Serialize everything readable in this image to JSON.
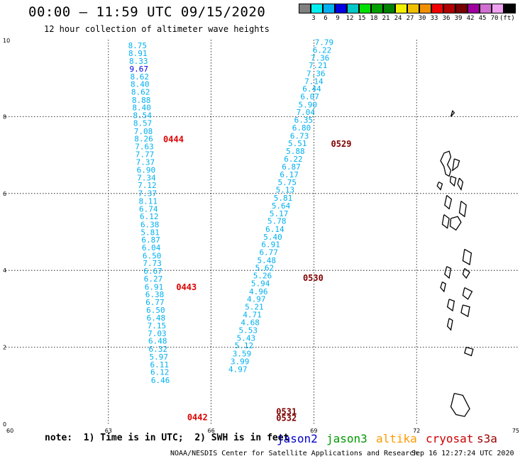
{
  "header": {
    "title": "00:00 – 11:59 UTC 09/15/2020",
    "subtitle": "12 hour collection of altimeter wave heights"
  },
  "legend": {
    "colors": [
      "#808080",
      "#00f0f0",
      "#00b0f0",
      "#0000e0",
      "#00c8c8",
      "#00e000",
      "#00a000",
      "#008000",
      "#f0f000",
      "#f0c000",
      "#f09000",
      "#f00000",
      "#b00000",
      "#780000",
      "#a000a0",
      "#d070d0",
      "#f0a0f0",
      "#000000"
    ],
    "labels": [
      "3",
      "6",
      "9",
      "12",
      "15",
      "18",
      "21",
      "24",
      "27",
      "30",
      "33",
      "36",
      "39",
      "42",
      "45",
      "70"
    ],
    "unit": "(ft)"
  },
  "note": {
    "text": "note:  1) Time is in UTC;  2) SWH is in feet",
    "satellites": [
      {
        "name": "jason2",
        "color": "#0000cc"
      },
      {
        "name": "jason3",
        "color": "#009900"
      },
      {
        "name": "altika",
        "color": "#ff9900"
      },
      {
        "name": "cryosat",
        "color": "#cc0000"
      },
      {
        "name": "s3a",
        "color": "#990000"
      }
    ]
  },
  "footer": {
    "left": "NOAA/NESDIS Center for Satellite Applications and Research",
    "right": "Sep 16 12:27:24 UTC 2020"
  },
  "chart_data": {
    "type": "scatter",
    "title": "00:00 – 11:59 UTC 09/15/2020",
    "xlabel": "",
    "ylabel": "",
    "xlim": [
      60,
      75
    ],
    "ylim": [
      0,
      10
    ],
    "x_ticks": [
      60,
      63,
      66,
      69,
      72,
      75
    ],
    "y_ticks": [
      0,
      2,
      4,
      6,
      8,
      10
    ],
    "grid": true,
    "series": [
      {
        "color": "#00b0f0",
        "points": [
          {
            "x": 63.85,
            "y": 9.78,
            "v": "8.75"
          },
          {
            "x": 63.86,
            "y": 9.58,
            "v": "8.91"
          },
          {
            "x": 63.88,
            "y": 9.37,
            "v": "8.33"
          },
          {
            "x": 63.89,
            "y": 9.17,
            "v": "9.67",
            "color": "#0000e0"
          },
          {
            "x": 63.91,
            "y": 8.97,
            "v": "8.62"
          },
          {
            "x": 63.92,
            "y": 8.77,
            "v": "8.40"
          },
          {
            "x": 63.94,
            "y": 8.57,
            "v": "8.62"
          },
          {
            "x": 63.96,
            "y": 8.36,
            "v": "8.88"
          },
          {
            "x": 63.97,
            "y": 8.16,
            "v": "8.40"
          },
          {
            "x": 63.99,
            "y": 7.96,
            "v": "8.54"
          },
          {
            "x": 64.0,
            "y": 7.76,
            "v": "8.57"
          },
          {
            "x": 64.02,
            "y": 7.55,
            "v": "7.08"
          },
          {
            "x": 64.03,
            "y": 7.35,
            "v": "8.26"
          },
          {
            "x": 64.05,
            "y": 7.15,
            "v": "7.63"
          },
          {
            "x": 64.06,
            "y": 6.95,
            "v": "7.77"
          },
          {
            "x": 64.08,
            "y": 6.74,
            "v": "7.37"
          },
          {
            "x": 64.1,
            "y": 6.54,
            "v": "6.90"
          },
          {
            "x": 64.11,
            "y": 6.34,
            "v": "7.34"
          },
          {
            "x": 64.13,
            "y": 6.14,
            "v": "7.12"
          },
          {
            "x": 64.14,
            "y": 5.93,
            "v": "7.37"
          },
          {
            "x": 64.16,
            "y": 5.73,
            "v": "8.11"
          },
          {
            "x": 64.17,
            "y": 5.53,
            "v": "6.74"
          },
          {
            "x": 64.19,
            "y": 5.33,
            "v": "6.12"
          },
          {
            "x": 64.21,
            "y": 5.12,
            "v": "6.38"
          },
          {
            "x": 64.22,
            "y": 4.92,
            "v": "5.81"
          },
          {
            "x": 64.24,
            "y": 4.72,
            "v": "6.87"
          },
          {
            "x": 64.25,
            "y": 4.52,
            "v": "6.04"
          },
          {
            "x": 64.27,
            "y": 4.31,
            "v": "6.50"
          },
          {
            "x": 64.28,
            "y": 4.11,
            "v": "7.73"
          },
          {
            "x": 64.3,
            "y": 3.91,
            "v": "6.67"
          },
          {
            "x": 64.31,
            "y": 3.71,
            "v": "6.27"
          },
          {
            "x": 64.33,
            "y": 3.5,
            "v": "6.91"
          },
          {
            "x": 64.35,
            "y": 3.3,
            "v": "6.38"
          },
          {
            "x": 64.36,
            "y": 3.1,
            "v": "6.77"
          },
          {
            "x": 64.38,
            "y": 2.9,
            "v": "6.50"
          },
          {
            "x": 64.39,
            "y": 2.69,
            "v": "6.48"
          },
          {
            "x": 64.41,
            "y": 2.49,
            "v": "7.15"
          },
          {
            "x": 64.42,
            "y": 2.29,
            "v": "7.03"
          },
          {
            "x": 64.44,
            "y": 2.09,
            "v": "6.48"
          },
          {
            "x": 64.45,
            "y": 1.88,
            "v": "6.32"
          },
          {
            "x": 64.47,
            "y": 1.68,
            "v": "5.97"
          },
          {
            "x": 64.49,
            "y": 1.48,
            "v": "6.11"
          },
          {
            "x": 64.5,
            "y": 1.28,
            "v": "6.12"
          },
          {
            "x": 64.52,
            "y": 1.07,
            "v": "6.46"
          }
        ]
      },
      {
        "color": "#00b0f0",
        "points": [
          {
            "x": 69.3,
            "y": 9.86,
            "v": "7.79"
          },
          {
            "x": 69.24,
            "y": 9.66,
            "v": "6.22"
          },
          {
            "x": 69.18,
            "y": 9.46,
            "v": "7.36"
          },
          {
            "x": 69.12,
            "y": 9.26,
            "v": "7.21"
          },
          {
            "x": 69.06,
            "y": 9.05,
            "v": "7.36"
          },
          {
            "x": 69.0,
            "y": 8.85,
            "v": "7.14"
          },
          {
            "x": 68.94,
            "y": 8.65,
            "v": "6.44"
          },
          {
            "x": 68.88,
            "y": 8.45,
            "v": "6.07"
          },
          {
            "x": 68.82,
            "y": 8.24,
            "v": "5.90"
          },
          {
            "x": 68.76,
            "y": 8.04,
            "v": "7.04"
          },
          {
            "x": 68.7,
            "y": 7.84,
            "v": "6.35"
          },
          {
            "x": 68.64,
            "y": 7.64,
            "v": "6.80"
          },
          {
            "x": 68.58,
            "y": 7.43,
            "v": "6.73"
          },
          {
            "x": 68.52,
            "y": 7.23,
            "v": "5.51"
          },
          {
            "x": 68.46,
            "y": 7.03,
            "v": "5.88"
          },
          {
            "x": 68.4,
            "y": 6.83,
            "v": "6.22"
          },
          {
            "x": 68.34,
            "y": 6.62,
            "v": "6.87"
          },
          {
            "x": 68.28,
            "y": 6.42,
            "v": "6.17"
          },
          {
            "x": 68.22,
            "y": 6.22,
            "v": "5.75"
          },
          {
            "x": 68.16,
            "y": 6.02,
            "v": "5.13"
          },
          {
            "x": 68.1,
            "y": 5.81,
            "v": "5.81"
          },
          {
            "x": 68.04,
            "y": 5.61,
            "v": "5.64"
          },
          {
            "x": 67.98,
            "y": 5.41,
            "v": "5.17"
          },
          {
            "x": 67.92,
            "y": 5.21,
            "v": "5.78"
          },
          {
            "x": 67.86,
            "y": 5.0,
            "v": "6.14"
          },
          {
            "x": 67.8,
            "y": 4.8,
            "v": "5.40"
          },
          {
            "x": 67.74,
            "y": 4.6,
            "v": "6.91"
          },
          {
            "x": 67.68,
            "y": 4.4,
            "v": "6.77"
          },
          {
            "x": 67.62,
            "y": 4.19,
            "v": "5.48"
          },
          {
            "x": 67.56,
            "y": 3.99,
            "v": "5.62"
          },
          {
            "x": 67.5,
            "y": 3.79,
            "v": "5.26"
          },
          {
            "x": 67.44,
            "y": 3.59,
            "v": "5.94"
          },
          {
            "x": 67.38,
            "y": 3.38,
            "v": "4.96"
          },
          {
            "x": 67.32,
            "y": 3.18,
            "v": "4.97"
          },
          {
            "x": 67.26,
            "y": 2.98,
            "v": "5.21"
          },
          {
            "x": 67.2,
            "y": 2.78,
            "v": "4.71"
          },
          {
            "x": 67.14,
            "y": 2.57,
            "v": "4.68"
          },
          {
            "x": 67.08,
            "y": 2.37,
            "v": "5.53"
          },
          {
            "x": 67.02,
            "y": 2.17,
            "v": "5.43"
          },
          {
            "x": 66.96,
            "y": 1.97,
            "v": "5.12"
          },
          {
            "x": 66.9,
            "y": 1.76,
            "v": "3.59"
          },
          {
            "x": 66.84,
            "y": 1.56,
            "v": "3.99"
          },
          {
            "x": 66.78,
            "y": 1.36,
            "v": "4.97"
          }
        ]
      }
    ],
    "time_labels": [
      {
        "x": 64.6,
        "y": 7.33,
        "text": "0444",
        "color": "#dd0000"
      },
      {
        "x": 64.98,
        "y": 3.49,
        "text": "0443",
        "color": "#dd0000"
      },
      {
        "x": 65.3,
        "y": 0.1,
        "text": "0442",
        "color": "#dd0000"
      },
      {
        "x": 69.5,
        "y": 7.21,
        "text": "0529",
        "color": "#800000"
      },
      {
        "x": 68.68,
        "y": 3.73,
        "text": "0530",
        "color": "#800000"
      },
      {
        "x": 67.9,
        "y": 0.25,
        "text": "0531",
        "color": "#800000"
      },
      {
        "x": 67.9,
        "y": 0.08,
        "text": "0532",
        "color": "#800000"
      }
    ],
    "coastline": [
      [
        [
          73.0,
          8.0
        ],
        [
          73.1,
          8.1
        ],
        [
          73.05,
          8.15
        ],
        [
          73.0,
          8.0
        ]
      ],
      [
        [
          72.8,
          7.05
        ],
        [
          72.95,
          7.1
        ],
        [
          73.0,
          6.95
        ],
        [
          72.9,
          6.75
        ],
        [
          73.0,
          6.6
        ],
        [
          72.95,
          6.45
        ],
        [
          72.85,
          6.5
        ],
        [
          72.8,
          6.7
        ],
        [
          72.7,
          6.85
        ],
        [
          72.8,
          7.05
        ]
      ],
      [
        [
          73.1,
          6.9
        ],
        [
          73.25,
          6.85
        ],
        [
          73.2,
          6.7
        ],
        [
          73.05,
          6.6
        ],
        [
          73.1,
          6.9
        ]
      ],
      [
        [
          72.65,
          6.3
        ],
        [
          72.75,
          6.25
        ],
        [
          72.7,
          6.1
        ],
        [
          72.6,
          6.2
        ],
        [
          72.65,
          6.3
        ]
      ],
      [
        [
          73.0,
          6.45
        ],
        [
          73.15,
          6.4
        ],
        [
          73.1,
          6.2
        ],
        [
          72.98,
          6.3
        ],
        [
          73.0,
          6.45
        ]
      ],
      [
        [
          73.25,
          6.4
        ],
        [
          73.35,
          6.3
        ],
        [
          73.3,
          6.1
        ],
        [
          73.2,
          6.25
        ],
        [
          73.25,
          6.4
        ]
      ],
      [
        [
          72.88,
          5.95
        ],
        [
          73.02,
          5.85
        ],
        [
          72.95,
          5.6
        ],
        [
          72.82,
          5.7
        ],
        [
          72.88,
          5.95
        ]
      ],
      [
        [
          72.8,
          5.45
        ],
        [
          72.95,
          5.35
        ],
        [
          72.9,
          5.1
        ],
        [
          72.75,
          5.2
        ],
        [
          72.8,
          5.45
        ]
      ],
      [
        [
          73.3,
          5.8
        ],
        [
          73.45,
          5.7
        ],
        [
          73.4,
          5.4
        ],
        [
          73.25,
          5.5
        ],
        [
          73.3,
          5.8
        ]
      ],
      [
        [
          73.0,
          5.35
        ],
        [
          73.2,
          5.4
        ],
        [
          73.3,
          5.25
        ],
        [
          73.15,
          5.05
        ],
        [
          72.98,
          5.15
        ],
        [
          73.0,
          5.35
        ]
      ],
      [
        [
          73.4,
          4.55
        ],
        [
          73.6,
          4.45
        ],
        [
          73.55,
          4.15
        ],
        [
          73.35,
          4.25
        ],
        [
          73.4,
          4.55
        ]
      ],
      [
        [
          72.88,
          4.1
        ],
        [
          73.0,
          4.05
        ],
        [
          72.95,
          3.8
        ],
        [
          72.82,
          3.9
        ],
        [
          72.88,
          4.1
        ]
      ],
      [
        [
          73.4,
          4.05
        ],
        [
          73.55,
          3.95
        ],
        [
          73.45,
          3.8
        ],
        [
          73.35,
          3.9
        ],
        [
          73.4,
          4.05
        ]
      ],
      [
        [
          72.75,
          3.7
        ],
        [
          72.85,
          3.65
        ],
        [
          72.8,
          3.45
        ],
        [
          72.7,
          3.55
        ],
        [
          72.75,
          3.7
        ]
      ],
      [
        [
          73.4,
          3.55
        ],
        [
          73.62,
          3.45
        ],
        [
          73.5,
          3.25
        ],
        [
          73.35,
          3.35
        ],
        [
          73.4,
          3.55
        ]
      ],
      [
        [
          72.95,
          3.25
        ],
        [
          73.1,
          3.2
        ],
        [
          73.05,
          2.95
        ],
        [
          72.9,
          3.05
        ],
        [
          72.95,
          3.25
        ]
      ],
      [
        [
          73.35,
          3.1
        ],
        [
          73.55,
          3.05
        ],
        [
          73.5,
          2.8
        ],
        [
          73.3,
          2.9
        ],
        [
          73.35,
          3.1
        ]
      ],
      [
        [
          72.95,
          2.75
        ],
        [
          73.05,
          2.7
        ],
        [
          73.0,
          2.45
        ],
        [
          72.9,
          2.55
        ],
        [
          72.95,
          2.75
        ]
      ],
      [
        [
          73.45,
          2.0
        ],
        [
          73.65,
          1.95
        ],
        [
          73.6,
          1.78
        ],
        [
          73.4,
          1.85
        ],
        [
          73.45,
          2.0
        ]
      ],
      [
        [
          73.1,
          0.8
        ],
        [
          73.35,
          0.75
        ],
        [
          73.55,
          0.4
        ],
        [
          73.4,
          0.2
        ],
        [
          73.15,
          0.25
        ],
        [
          73.0,
          0.45
        ],
        [
          73.1,
          0.8
        ]
      ]
    ]
  }
}
